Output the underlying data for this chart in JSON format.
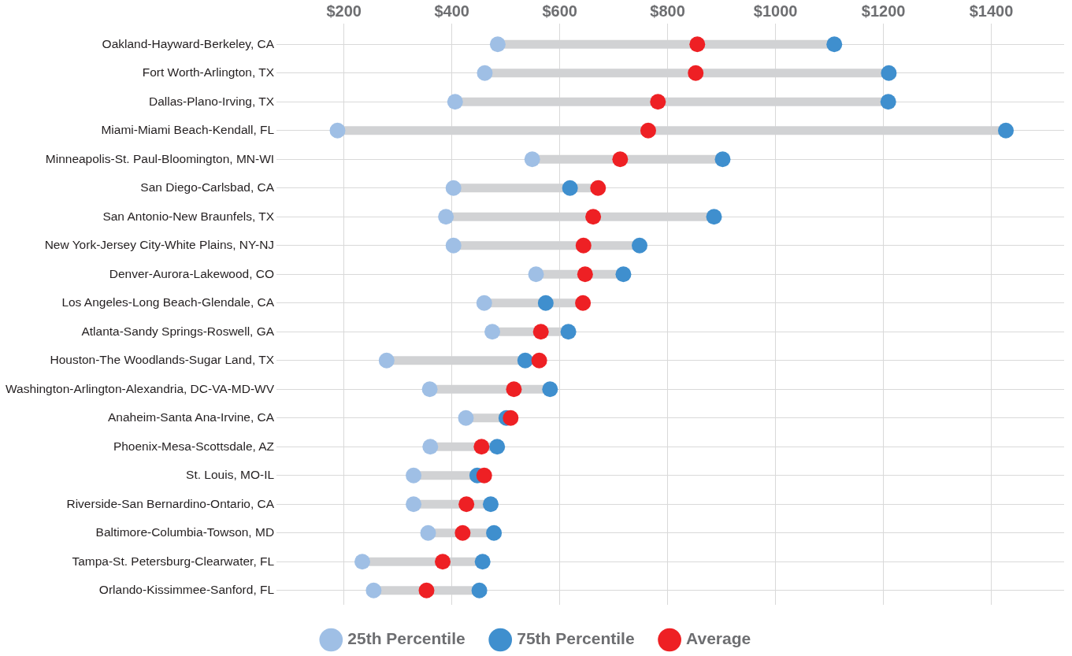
{
  "chart_data": {
    "type": "scatter",
    "orientation": "horizontal",
    "grid": true,
    "legend": "bottom",
    "marker": "circle",
    "categories": [
      "Oakland-Hayward-Berkeley, CA",
      "Fort Worth-Arlington, TX",
      "Dallas-Plano-Irving, TX",
      "Miami-Miami Beach-Kendall, FL",
      "Minneapolis-St. Paul-Bloomington, MN-WI",
      "San Diego-Carlsbad, CA",
      "San Antonio-New Braunfels, TX",
      "New York-Jersey City-White Plains, NY-NJ",
      "Denver-Aurora-Lakewood, CO",
      "Los Angeles-Long Beach-Glendale, CA",
      "Atlanta-Sandy Springs-Roswell, GA",
      "Houston-The Woodlands-Sugar Land, TX",
      "Washington-Arlington-Alexandria, DC-VA-MD-WV",
      "Anaheim-Santa Ana-Irvine, CA",
      "Phoenix-Mesa-Scottsdale, AZ",
      "St. Louis, MO-IL",
      "Riverside-San Bernardino-Ontario, CA",
      "Baltimore-Columbia-Towson, MD",
      "Tampa-St. Petersburg-Clearwater, FL",
      "Orlando-Kissimmee-Sanford, FL"
    ],
    "xlim": [
      75,
      1535
    ],
    "xticks": [
      {
        "value": 200,
        "label": "$200"
      },
      {
        "value": 400,
        "label": "$400"
      },
      {
        "value": 600,
        "label": "$600"
      },
      {
        "value": 800,
        "label": "$800"
      },
      {
        "value": 1000,
        "label": "$1000"
      },
      {
        "value": 1200,
        "label": "$1200"
      },
      {
        "value": 1400,
        "label": "$1400"
      }
    ],
    "series": [
      {
        "name": "25th Percentile",
        "color": "#9fbfe5",
        "values": [
          485,
          461,
          406,
          188,
          549,
          403,
          389,
          403,
          556,
          460,
          475,
          279,
          359,
          426,
          360,
          329,
          329,
          356,
          234,
          255
        ]
      },
      {
        "name": "75th Percentile",
        "color": "#3f8fce",
        "values": [
          1109,
          1210,
          1209,
          1427,
          902,
          619,
          886,
          748,
          718,
          574,
          616,
          536,
          582,
          501,
          484,
          447,
          472,
          478,
          457,
          451
        ]
      },
      {
        "name": "Average",
        "color": "#ee2024",
        "values": [
          855,
          852,
          782,
          764,
          712,
          671,
          662,
          644,
          647,
          643,
          565,
          562,
          515,
          509,
          455,
          460,
          427,
          420,
          383,
          353
        ]
      }
    ]
  }
}
